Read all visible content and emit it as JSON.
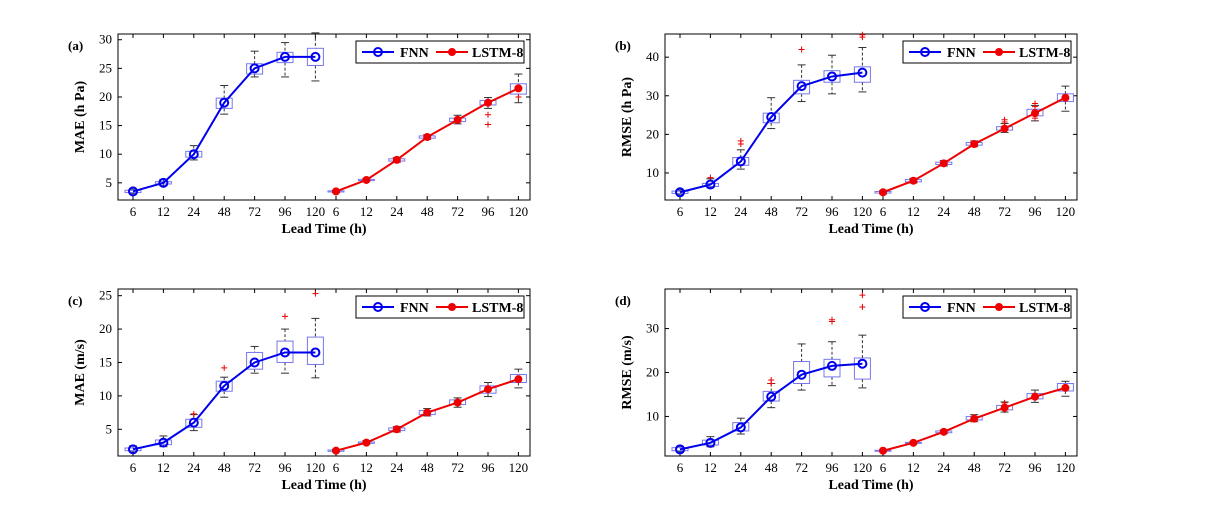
{
  "legend": {
    "fnn": "FNN",
    "lstm": "LSTM-8"
  },
  "colors": {
    "fnn": "#0000ee",
    "lstm": "#ee0000",
    "box": "#7777ee",
    "whisker": "#333333",
    "outlier": "#ee0000"
  },
  "chart_data": [
    {
      "type": "line",
      "panel_label": "(a)",
      "ylabel": "MAE (h Pa)",
      "xlabel": "Lead Time (h)",
      "x": [
        "6",
        "12",
        "24",
        "48",
        "72",
        "96",
        "120"
      ],
      "ylim": [
        2,
        31
      ],
      "yticks": [
        5,
        10,
        15,
        20,
        25,
        30
      ],
      "series": [
        {
          "name": "FNN",
          "values": [
            3.5,
            5,
            10,
            19,
            25,
            27,
            27
          ],
          "box": [
            [
              3.3,
              3.7
            ],
            [
              4.8,
              5.2
            ],
            [
              9.5,
              10.5
            ],
            [
              18,
              19.8
            ],
            [
              24,
              25.8
            ],
            [
              26,
              27.8
            ],
            [
              25.5,
              28.5
            ]
          ],
          "whisk": [
            [
              3.1,
              3.9
            ],
            [
              4.5,
              5.6
            ],
            [
              9,
              11.5
            ],
            [
              17,
              22
            ],
            [
              23.5,
              28
            ],
            [
              23.5,
              29.5
            ],
            [
              22.8,
              31.2
            ]
          ],
          "outliers": []
        },
        {
          "name": "LSTM-8",
          "values": [
            3.5,
            5.5,
            9,
            13,
            16,
            19,
            21.5
          ],
          "box": [
            [
              3.4,
              3.6
            ],
            [
              5.4,
              5.6
            ],
            [
              8.8,
              9.2
            ],
            [
              12.8,
              13.2
            ],
            [
              15.7,
              16.3
            ],
            [
              18.6,
              19.4
            ],
            [
              20.5,
              22.3
            ]
          ],
          "whisk": [
            [
              3.3,
              3.7
            ],
            [
              5.3,
              5.8
            ],
            [
              8.6,
              9.4
            ],
            [
              12.6,
              13.4
            ],
            [
              15.3,
              16.8
            ],
            [
              18,
              19.9
            ],
            [
              19,
              24
            ]
          ],
          "outliers": [
            [
              5,
              16.9
            ],
            [
              5,
              15.2
            ],
            [
              6,
              20
            ]
          ]
        }
      ]
    },
    {
      "type": "line",
      "panel_label": "(b)",
      "ylabel": "RMSE (h Pa)",
      "xlabel": "Lead Time (h)",
      "x": [
        "6",
        "12",
        "24",
        "48",
        "72",
        "96",
        "120"
      ],
      "ylim": [
        3,
        46
      ],
      "yticks": [
        10,
        20,
        30,
        40
      ],
      "series": [
        {
          "name": "FNN",
          "values": [
            5,
            7,
            13,
            24.5,
            32.5,
            35,
            36
          ],
          "box": [
            [
              4.7,
              5.3
            ],
            [
              6.5,
              7.3
            ],
            [
              12,
              14
            ],
            [
              23,
              25.5
            ],
            [
              30.5,
              34
            ],
            [
              33.5,
              36.5
            ],
            [
              33.5,
              37.5
            ]
          ],
          "whisk": [
            [
              4.5,
              5.6
            ],
            [
              6.2,
              8.5
            ],
            [
              11,
              16
            ],
            [
              21.5,
              29.5
            ],
            [
              28.5,
              38
            ],
            [
              30.5,
              40.5
            ],
            [
              31,
              42.5
            ]
          ],
          "outliers": [
            [
              1,
              8.8
            ],
            [
              2,
              17.5
            ],
            [
              2,
              18.3
            ],
            [
              4,
              42
            ],
            [
              6,
              45.2
            ],
            [
              6,
              45.8
            ]
          ]
        },
        {
          "name": "LSTM-8",
          "values": [
            5,
            8,
            12.5,
            17.5,
            21.5,
            25.5,
            29.5
          ],
          "box": [
            [
              4.8,
              5.2
            ],
            [
              7.7,
              8.3
            ],
            [
              12.2,
              12.8
            ],
            [
              17.2,
              17.9
            ],
            [
              21.1,
              22
            ],
            [
              24.8,
              26.5
            ],
            [
              28.5,
              30.5
            ]
          ],
          "whisk": [
            [
              4.6,
              5.4
            ],
            [
              7.4,
              8.6
            ],
            [
              11.8,
              13.2
            ],
            [
              16.8,
              18.3
            ],
            [
              20.5,
              22.8
            ],
            [
              23.5,
              27.5
            ],
            [
              26,
              32.5
            ]
          ],
          "outliers": [
            [
              4,
              23.8
            ],
            [
              4,
              23.2
            ],
            [
              5,
              28
            ],
            [
              5,
              27.2
            ],
            [
              5,
              24.2
            ]
          ]
        }
      ]
    },
    {
      "type": "line",
      "panel_label": "(c)",
      "ylabel": "MAE (m/s)",
      "xlabel": "Lead Time (h)",
      "x": [
        "6",
        "12",
        "24",
        "48",
        "72",
        "96",
        "120"
      ],
      "ylim": [
        1,
        26
      ],
      "yticks": [
        5,
        10,
        15,
        20,
        25
      ],
      "series": [
        {
          "name": "FNN",
          "values": [
            2,
            3,
            6,
            11.5,
            15,
            16.5,
            16.5
          ],
          "box": [
            [
              1.8,
              2.2
            ],
            [
              2.7,
              3.4
            ],
            [
              5.3,
              6.5
            ],
            [
              10.7,
              12.2
            ],
            [
              14,
              16.5
            ],
            [
              15,
              18.2
            ],
            [
              14.7,
              18.8
            ]
          ],
          "whisk": [
            [
              1.6,
              2.5
            ],
            [
              2.4,
              4
            ],
            [
              4.8,
              7.2
            ],
            [
              9.8,
              12.8
            ],
            [
              13.4,
              17.4
            ],
            [
              13.4,
              20
            ],
            [
              12.7,
              21.6
            ]
          ],
          "outliers": [
            [
              2,
              7.3
            ],
            [
              3,
              14.2
            ],
            [
              5,
              21.9
            ],
            [
              6,
              25.3
            ]
          ]
        },
        {
          "name": "LSTM-8",
          "values": [
            1.8,
            3,
            5,
            7.5,
            9,
            11,
            12.5
          ],
          "box": [
            [
              1.7,
              1.9
            ],
            [
              2.9,
              3.1
            ],
            [
              4.8,
              5.2
            ],
            [
              7.2,
              7.8
            ],
            [
              8.7,
              9.4
            ],
            [
              10.4,
              11.5
            ],
            [
              12,
              13.2
            ]
          ],
          "whisk": [
            [
              1.6,
              2
            ],
            [
              2.8,
              3.3
            ],
            [
              4.6,
              5.4
            ],
            [
              7,
              8.1
            ],
            [
              8.3,
              9.7
            ],
            [
              9.9,
              12
            ],
            [
              11.2,
              14
            ]
          ],
          "outliers": []
        }
      ]
    },
    {
      "type": "line",
      "panel_label": "(d)",
      "ylabel": "RMSE (m/s)",
      "xlabel": "Lead Time (h)",
      "x": [
        "6",
        "12",
        "24",
        "48",
        "72",
        "96",
        "120"
      ],
      "ylim": [
        1,
        39
      ],
      "yticks": [
        10,
        20,
        30
      ],
      "series": [
        {
          "name": "FNN",
          "values": [
            2.5,
            4,
            7.5,
            14.5,
            19.5,
            21.5,
            22
          ],
          "box": [
            [
              2.2,
              2.9
            ],
            [
              3.5,
              4.6
            ],
            [
              6.7,
              8.6
            ],
            [
              13.5,
              15.7
            ],
            [
              17.5,
              22.5
            ],
            [
              19,
              23
            ],
            [
              18.5,
              23.3
            ]
          ],
          "whisk": [
            [
              2,
              3.2
            ],
            [
              3.1,
              5.4
            ],
            [
              6,
              9.6
            ],
            [
              12,
              17.5
            ],
            [
              16,
              26.5
            ],
            [
              17,
              27
            ],
            [
              16.5,
              28.5
            ]
          ],
          "outliers": [
            [
              3,
              18.3
            ],
            [
              3,
              17.5
            ],
            [
              5,
              31.6
            ],
            [
              5,
              32
            ],
            [
              6,
              34.9
            ],
            [
              6,
              37.6
            ]
          ]
        },
        {
          "name": "LSTM-8",
          "values": [
            2.2,
            4,
            6.5,
            9.5,
            12,
            14.5,
            16.5
          ],
          "box": [
            [
              2.1,
              2.3
            ],
            [
              3.9,
              4.1
            ],
            [
              6.3,
              6.7
            ],
            [
              9.2,
              10
            ],
            [
              11.5,
              12.5
            ],
            [
              14,
              15.2
            ],
            [
              15.8,
              17.5
            ]
          ],
          "whisk": [
            [
              2,
              2.4
            ],
            [
              3.8,
              4.3
            ],
            [
              6.1,
              6.9
            ],
            [
              8.8,
              10.4
            ],
            [
              11,
              13.3
            ],
            [
              13.2,
              16
            ],
            [
              14.6,
              18
            ]
          ],
          "outliers": [
            [
              4,
              13.1
            ],
            [
              4,
              11.5
            ]
          ]
        }
      ]
    }
  ]
}
